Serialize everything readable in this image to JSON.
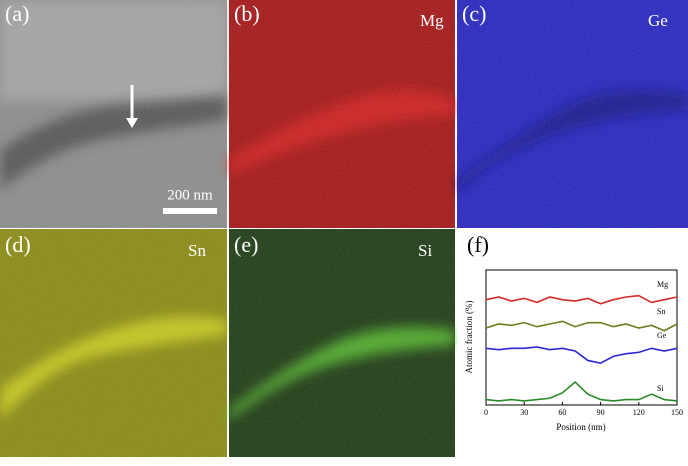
{
  "panels": [
    {
      "label": "(a)",
      "scale_bar": "200 nm"
    },
    {
      "label": "(b)",
      "element": "Mg"
    },
    {
      "label": "(c)",
      "element": "Ge"
    },
    {
      "label": "(d)",
      "element": "Sn"
    },
    {
      "label": "(e)",
      "element": "Si"
    },
    {
      "label": "(f)"
    }
  ],
  "chart_data": {
    "type": "line",
    "x_label": "Position (nm)",
    "y_label": "Atomic fraction (%)",
    "x": [
      0,
      10,
      20,
      30,
      40,
      50,
      60,
      70,
      80,
      90,
      100,
      110,
      120,
      130,
      140,
      150
    ],
    "xlim": [
      0,
      150
    ],
    "xticks": [
      0,
      30,
      60,
      90,
      120,
      150
    ],
    "ylim": [
      0,
      1
    ],
    "series": [
      {
        "name": "Mg",
        "color": "#d42a2a",
        "values": [
          0.78,
          0.8,
          0.77,
          0.79,
          0.76,
          0.8,
          0.78,
          0.77,
          0.79,
          0.75,
          0.78,
          0.8,
          0.81,
          0.76,
          0.78,
          0.8
        ]
      },
      {
        "name": "Sn",
        "color": "#6f7a1c",
        "values": [
          0.57,
          0.6,
          0.59,
          0.61,
          0.58,
          0.6,
          0.62,
          0.58,
          0.61,
          0.61,
          0.58,
          0.6,
          0.57,
          0.59,
          0.55,
          0.6
        ]
      },
      {
        "name": "Ge",
        "color": "#2a2ad4",
        "values": [
          0.42,
          0.41,
          0.42,
          0.42,
          0.43,
          0.41,
          0.42,
          0.4,
          0.33,
          0.31,
          0.36,
          0.38,
          0.39,
          0.42,
          0.4,
          0.42
        ]
      },
      {
        "name": "Si",
        "color": "#2a8a2a",
        "values": [
          0.04,
          0.03,
          0.04,
          0.03,
          0.04,
          0.05,
          0.09,
          0.17,
          0.08,
          0.04,
          0.03,
          0.04,
          0.04,
          0.08,
          0.04,
          0.03
        ]
      }
    ]
  }
}
